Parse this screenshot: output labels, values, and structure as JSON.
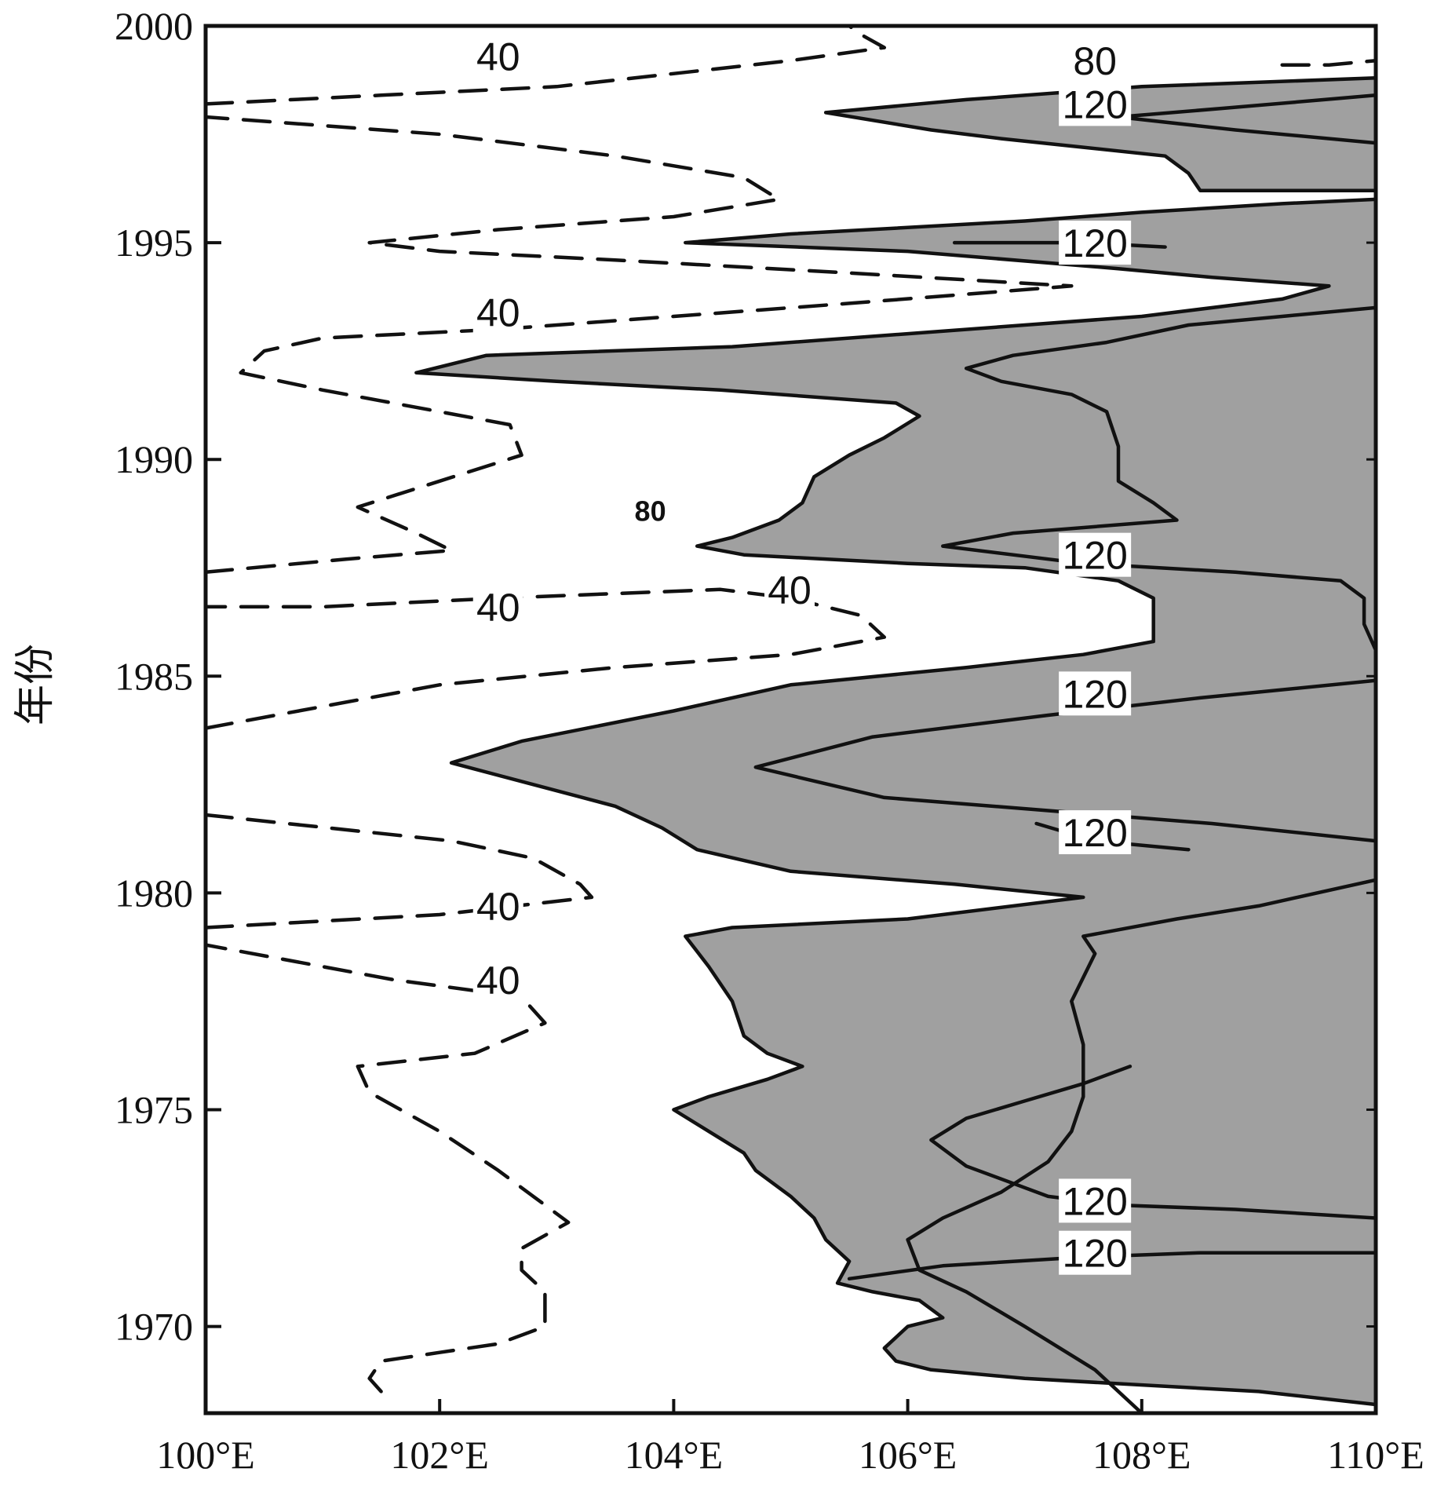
{
  "chart_data": {
    "type": "contour",
    "title": "",
    "xlabel": "",
    "ylabel": "年份",
    "xlim": [
      100,
      110
    ],
    "ylim": [
      1968,
      2000
    ],
    "x_ticks": [
      100,
      102,
      104,
      106,
      108,
      110
    ],
    "x_tick_labels": [
      "100°E",
      "102°E",
      "104°E",
      "106°E",
      "108°E",
      "110°E"
    ],
    "y_ticks": [
      1970,
      1975,
      1980,
      1985,
      1990,
      1995,
      2000
    ],
    "y_tick_labels": [
      "1970",
      "1975",
      "1980",
      "1985",
      "1990",
      "1995",
      "2000"
    ],
    "shading": {
      "threshold": 80,
      "color": "#a0a0a0"
    },
    "contours": [
      {
        "level": "80",
        "style": "solid",
        "points": [
          [
            110,
            1968.2
          ],
          [
            109,
            1968.5
          ],
          [
            107,
            1968.8
          ],
          [
            106.2,
            1969
          ],
          [
            105.9,
            1969.2
          ],
          [
            105.8,
            1969.5
          ],
          [
            106,
            1970
          ],
          [
            106.3,
            1970.2
          ],
          [
            106.1,
            1970.6
          ],
          [
            105.7,
            1970.8
          ],
          [
            105.4,
            1971
          ],
          [
            105.5,
            1971.5
          ],
          [
            105.3,
            1972
          ],
          [
            105.2,
            1972.5
          ],
          [
            105,
            1973
          ],
          [
            104.7,
            1973.6
          ],
          [
            104.6,
            1974
          ],
          [
            104.3,
            1974.5
          ],
          [
            104,
            1975
          ],
          [
            104.3,
            1975.3
          ],
          [
            104.8,
            1975.7
          ],
          [
            105.1,
            1976
          ],
          [
            104.8,
            1976.3
          ],
          [
            104.6,
            1976.7
          ],
          [
            104.5,
            1977.5
          ],
          [
            104.3,
            1978.3
          ],
          [
            104.1,
            1979
          ],
          [
            104.5,
            1979.2
          ],
          [
            106,
            1979.4
          ],
          [
            107.5,
            1979.9
          ],
          [
            106.4,
            1980.2
          ],
          [
            105,
            1980.5
          ],
          [
            104.2,
            1981
          ],
          [
            103.9,
            1981.5
          ],
          [
            103.5,
            1982
          ],
          [
            102.8,
            1982.5
          ],
          [
            102.1,
            1983
          ],
          [
            102.7,
            1983.5
          ],
          [
            104,
            1984.2
          ],
          [
            105,
            1984.8
          ],
          [
            106.5,
            1985.2
          ],
          [
            107.5,
            1985.5
          ],
          [
            108.1,
            1985.8
          ],
          [
            108.1,
            1986.8
          ],
          [
            107.8,
            1987.2
          ],
          [
            107,
            1987.5
          ],
          [
            106,
            1987.6
          ],
          [
            104.6,
            1987.8
          ],
          [
            104.2,
            1988
          ],
          [
            104.5,
            1988.2
          ],
          [
            104.9,
            1988.6
          ],
          [
            105.1,
            1989
          ],
          [
            105.2,
            1989.6
          ],
          [
            105.5,
            1990.1
          ],
          [
            105.8,
            1990.5
          ],
          [
            106.1,
            1991
          ],
          [
            105.9,
            1991.3
          ],
          [
            104.4,
            1991.6
          ],
          [
            103,
            1991.8
          ],
          [
            101.8,
            1992
          ],
          [
            102.4,
            1992.4
          ],
          [
            104.5,
            1992.6
          ],
          [
            106,
            1992.9
          ],
          [
            107,
            1993.1
          ],
          [
            108,
            1993.3
          ],
          [
            109.2,
            1993.7
          ],
          [
            109.6,
            1994
          ],
          [
            108.6,
            1994.2
          ],
          [
            107.8,
            1994.4
          ],
          [
            106,
            1994.8
          ],
          [
            104.1,
            1995
          ],
          [
            105,
            1995.2
          ],
          [
            107,
            1995.5
          ],
          [
            108,
            1995.7
          ],
          [
            109.2,
            1995.9
          ],
          [
            110,
            1996
          ],
          [
            110,
            1996.2
          ],
          [
            108.5,
            1996.2
          ],
          [
            108.4,
            1996.6
          ],
          [
            108.2,
            1997
          ],
          [
            107.5,
            1997.2
          ],
          [
            106.8,
            1997.4
          ],
          [
            106.2,
            1997.6
          ],
          [
            105.3,
            1998
          ],
          [
            106.5,
            1998.3
          ],
          [
            108,
            1998.6
          ],
          [
            110,
            1998.8
          ],
          [
            110,
            1968.2
          ]
        ]
      },
      {
        "level": "40",
        "style": "dashed",
        "points": [
          [
            101.5,
            1968.5
          ],
          [
            101.4,
            1968.8
          ],
          [
            101.5,
            1969.2
          ],
          [
            102,
            1969.4
          ],
          [
            102.5,
            1969.6
          ],
          [
            102.9,
            1970
          ],
          [
            102.9,
            1970.8
          ],
          [
            102.7,
            1971.3
          ],
          [
            102.7,
            1971.8
          ],
          [
            103.1,
            1972.4
          ],
          [
            102.8,
            1973
          ],
          [
            102.5,
            1973.6
          ],
          [
            102,
            1974.5
          ],
          [
            101.4,
            1975.4
          ],
          [
            101.3,
            1976
          ],
          [
            102.3,
            1976.3
          ],
          [
            102.9,
            1977
          ],
          [
            102.7,
            1977.6
          ],
          [
            101.6,
            1978
          ],
          [
            100,
            1978.8
          ]
        ]
      },
      {
        "level": "40",
        "style": "dashed",
        "points": [
          [
            100,
            1979.2
          ],
          [
            102,
            1979.5
          ],
          [
            103.3,
            1979.9
          ],
          [
            103.2,
            1980.2
          ],
          [
            102.8,
            1980.8
          ],
          [
            102.1,
            1981.2
          ],
          [
            100,
            1981.8
          ]
        ]
      },
      {
        "level": "40",
        "style": "dashed",
        "points": [
          [
            100,
            1983.8
          ],
          [
            101,
            1984.3
          ],
          [
            102,
            1984.8
          ],
          [
            103.5,
            1985.2
          ],
          [
            105,
            1985.5
          ],
          [
            105.8,
            1985.9
          ],
          [
            105.6,
            1986.4
          ],
          [
            105,
            1986.8
          ],
          [
            104.4,
            1987
          ],
          [
            102.5,
            1986.8
          ],
          [
            101,
            1986.6
          ],
          [
            100,
            1986.6
          ]
        ]
      },
      {
        "level": "40",
        "style": "dashed",
        "points": [
          [
            100,
            1987.4
          ],
          [
            101.2,
            1987.7
          ],
          [
            102.1,
            1987.9
          ],
          [
            101.8,
            1988.3
          ],
          [
            101.3,
            1988.9
          ],
          [
            102,
            1989.5
          ],
          [
            102.7,
            1990.1
          ],
          [
            102.6,
            1990.8
          ],
          [
            102,
            1991.1
          ],
          [
            101,
            1991.6
          ],
          [
            100.3,
            1992
          ],
          [
            100.5,
            1992.5
          ],
          [
            101,
            1992.8
          ],
          [
            102.5,
            1993
          ],
          [
            104,
            1993.3
          ],
          [
            105.5,
            1993.6
          ],
          [
            107.4,
            1994
          ],
          [
            105.5,
            1994.3
          ],
          [
            103.5,
            1994.6
          ],
          [
            102,
            1994.8
          ],
          [
            101.4,
            1995
          ],
          [
            102.5,
            1995.3
          ],
          [
            104,
            1995.6
          ],
          [
            104.9,
            1996
          ],
          [
            104.6,
            1996.5
          ],
          [
            103.5,
            1997
          ],
          [
            102,
            1997.5
          ],
          [
            100,
            1997.9
          ]
        ]
      },
      {
        "level": "40",
        "style": "dashed",
        "points": [
          [
            100,
            1998.2
          ],
          [
            101.5,
            1998.4
          ],
          [
            103,
            1998.6
          ],
          [
            105,
            1999.2
          ],
          [
            105.8,
            1999.5
          ],
          [
            105.6,
            1999.8
          ],
          [
            105.5,
            2000
          ]
        ]
      },
      {
        "level": "80",
        "style": "solid",
        "points": [
          [
            108,
            1968
          ],
          [
            107.6,
            1969
          ],
          [
            107,
            1970
          ],
          [
            106.5,
            1970.8
          ],
          [
            106.1,
            1971.3
          ],
          [
            106,
            1972
          ],
          [
            106.3,
            1972.5
          ],
          [
            106.8,
            1973.1
          ],
          [
            107.2,
            1973.8
          ],
          [
            107.4,
            1974.5
          ],
          [
            107.5,
            1975.3
          ],
          [
            107.5,
            1976.5
          ],
          [
            107.4,
            1977.5
          ],
          [
            107.6,
            1978.6
          ],
          [
            107.5,
            1979
          ],
          [
            108.3,
            1979.4
          ],
          [
            109,
            1979.7
          ],
          [
            110,
            1980.3
          ]
        ]
      },
      {
        "level": "120",
        "style": "solid",
        "points": [
          [
            110,
            1972.5
          ],
          [
            108.8,
            1972.7
          ],
          [
            107.8,
            1972.8
          ],
          [
            107.2,
            1973
          ],
          [
            106.9,
            1973.3
          ],
          [
            106.5,
            1973.7
          ],
          [
            106.2,
            1974.3
          ],
          [
            106.5,
            1974.8
          ],
          [
            107,
            1975.2
          ],
          [
            107.5,
            1975.6
          ],
          [
            107.9,
            1976
          ]
        ]
      },
      {
        "level": "120",
        "style": "solid",
        "points": [
          [
            110,
            1971.7
          ],
          [
            108.5,
            1971.7
          ],
          [
            107.5,
            1971.6
          ],
          [
            106.3,
            1971.4
          ],
          [
            105.5,
            1971.1
          ]
        ]
      },
      {
        "level": "120",
        "style": "solid",
        "points": [
          [
            110,
            1981.2
          ],
          [
            108.6,
            1981.6
          ],
          [
            107.2,
            1981.9
          ],
          [
            105.8,
            1982.2
          ],
          [
            104.7,
            1982.9
          ],
          [
            105.7,
            1983.6
          ],
          [
            107.2,
            1984.1
          ],
          [
            108.5,
            1984.5
          ],
          [
            110,
            1984.9
          ]
        ]
      },
      {
        "level": "120",
        "style": "solid",
        "points": [
          [
            108.4,
            1981
          ],
          [
            107.6,
            1981.2
          ],
          [
            107.1,
            1981.6
          ]
        ]
      },
      {
        "level": "120",
        "style": "solid",
        "points": [
          [
            110,
            1985.6
          ],
          [
            109.9,
            1986.2
          ],
          [
            109.9,
            1986.8
          ],
          [
            109.7,
            1987.2
          ],
          [
            108.8,
            1987.4
          ],
          [
            107.5,
            1987.6
          ],
          [
            106.3,
            1988
          ],
          [
            106.9,
            1988.3
          ],
          [
            108.3,
            1988.6
          ],
          [
            108.1,
            1989
          ],
          [
            107.8,
            1989.5
          ],
          [
            107.8,
            1990.3
          ],
          [
            107.7,
            1991.1
          ],
          [
            107.4,
            1991.5
          ],
          [
            106.8,
            1991.8
          ],
          [
            106.5,
            1992.1
          ],
          [
            106.9,
            1992.4
          ],
          [
            107.7,
            1992.7
          ],
          [
            108.4,
            1993.1
          ],
          [
            109.2,
            1993.3
          ],
          [
            110,
            1993.5
          ]
        ]
      },
      {
        "level": "120",
        "style": "solid",
        "points": [
          [
            110,
            1997.3
          ],
          [
            108.8,
            1997.6
          ],
          [
            107.8,
            1997.9
          ],
          [
            108.7,
            1998.1
          ],
          [
            110,
            1998.4
          ]
        ]
      },
      {
        "level": "120",
        "style": "solid",
        "points": [
          [
            106.4,
            1995
          ],
          [
            107.5,
            1995
          ],
          [
            108.2,
            1994.9
          ]
        ]
      },
      {
        "level": "80",
        "style": "dashed",
        "points": [
          [
            109.2,
            1999.1
          ],
          [
            109.6,
            1999.1
          ],
          [
            110,
            1999.2
          ]
        ]
      }
    ],
    "contour_labels": [
      {
        "text": "40",
        "x": 102.5,
        "y": 1999.3
      },
      {
        "text": "40",
        "x": 102.5,
        "y": 1993.4
      },
      {
        "text": "40",
        "x": 102.5,
        "y": 1986.6
      },
      {
        "text": "40",
        "x": 104.99,
        "y": 1987
      },
      {
        "text": "40",
        "x": 102.5,
        "y": 1979.7
      },
      {
        "text": "40",
        "x": 102.5,
        "y": 1978
      },
      {
        "text": "80",
        "x": 107.6,
        "y": 1999.2
      },
      {
        "text": "80",
        "x": 103.8,
        "y": 1988.8,
        "bold": true
      },
      {
        "text": "120",
        "x": 107.6,
        "y": 1998.2
      },
      {
        "text": "120",
        "x": 107.6,
        "y": 1995
      },
      {
        "text": "120",
        "x": 107.6,
        "y": 1987.8
      },
      {
        "text": "120",
        "x": 107.6,
        "y": 1984.6
      },
      {
        "text": "120",
        "x": 107.6,
        "y": 1981.4
      },
      {
        "text": "120",
        "x": 107.6,
        "y": 1972.9
      },
      {
        "text": "120",
        "x": 107.6,
        "y": 1971.7
      }
    ],
    "grid": false,
    "legend": "none"
  }
}
